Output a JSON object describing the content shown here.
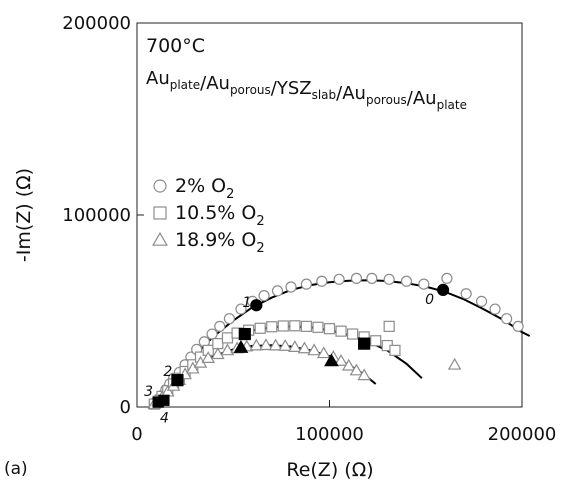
{
  "panel_label": "(a)",
  "chart_data": {
    "type": "scatter",
    "title": "",
    "xlabel": "Re(Z) (Ω)",
    "ylabel": "-Im(Z) (Ω)",
    "xlim": [
      0,
      200000
    ],
    "ylim": [
      0,
      200000
    ],
    "xticks": [
      0,
      100000,
      200000
    ],
    "yticks": [
      0,
      100000,
      200000
    ],
    "tick_labels_x": [
      "0",
      "100000",
      "200000"
    ],
    "tick_labels_y": [
      "0",
      "100000",
      "200000"
    ],
    "grid": false,
    "legend_position": "left",
    "annotations": {
      "temperature": "700°C",
      "cell": [
        {
          "text": "Au",
          "sub": "plate"
        },
        {
          "text": "/Au",
          "sub": "porous"
        },
        {
          "text": "/YSZ",
          "sub": "slab"
        },
        {
          "text": "/Au",
          "sub": "porous"
        },
        {
          "text": "/Au",
          "sub": "plate"
        }
      ]
    },
    "series": [
      {
        "name": "2% O",
        "name_sub": "2",
        "marker": "circle",
        "color": "#8c8c8c",
        "points": [
          [
            9000,
            2000
          ],
          [
            11000,
            4000
          ],
          [
            13000,
            6000
          ],
          [
            15000,
            9000
          ],
          [
            17000,
            12000
          ],
          [
            19000,
            15000
          ],
          [
            22000,
            18000
          ],
          [
            25000,
            22000
          ],
          [
            28000,
            26000
          ],
          [
            31000,
            30000
          ],
          [
            35000,
            34000
          ],
          [
            39000,
            38000
          ],
          [
            43000,
            42000
          ],
          [
            48000,
            46000
          ],
          [
            54000,
            51000
          ],
          [
            60000,
            55000
          ],
          [
            66000,
            58000
          ],
          [
            73000,
            60500
          ],
          [
            80000,
            62500
          ],
          [
            88000,
            64000
          ],
          [
            96000,
            65500
          ],
          [
            105000,
            66500
          ],
          [
            114000,
            67000
          ],
          [
            122000,
            67000
          ],
          [
            131000,
            66500
          ],
          [
            140000,
            65500
          ],
          [
            149000,
            64000
          ],
          [
            161000,
            67000
          ],
          [
            171000,
            59000
          ],
          [
            179000,
            55000
          ],
          [
            186000,
            51000
          ],
          [
            192000,
            46000
          ],
          [
            198000,
            42000
          ]
        ],
        "fit": [
          [
            9000,
            1500
          ],
          [
            15000,
            9500
          ],
          [
            22000,
            18000
          ],
          [
            30000,
            27000
          ],
          [
            40000,
            37000
          ],
          [
            50000,
            45000
          ],
          [
            60000,
            52000
          ],
          [
            70000,
            57000
          ],
          [
            80000,
            61000
          ],
          [
            90000,
            63500
          ],
          [
            100000,
            65000
          ],
          [
            110000,
            65800
          ],
          [
            120000,
            66000
          ],
          [
            130000,
            65600
          ],
          [
            140000,
            64500
          ],
          [
            150000,
            62700
          ],
          [
            160000,
            60000
          ],
          [
            170000,
            56000
          ],
          [
            180000,
            51000
          ],
          [
            190000,
            45500
          ],
          [
            200000,
            39000
          ],
          [
            204000,
            37000
          ]
        ],
        "frequency_markers": [
          {
            "label": "1",
            "point": [
              62000,
              53000
            ]
          },
          {
            "label": "0",
            "point": [
              159000,
              61000
            ]
          }
        ]
      },
      {
        "name": "10.5% O",
        "name_sub": "2",
        "marker": "square",
        "color": "#8c8c8c",
        "points": [
          [
            9000,
            1500
          ],
          [
            11000,
            3000
          ],
          [
            13000,
            5500
          ],
          [
            16000,
            8500
          ],
          [
            19000,
            12000
          ],
          [
            22000,
            15000
          ],
          [
            25000,
            18500
          ],
          [
            29000,
            22000
          ],
          [
            33000,
            26000
          ],
          [
            37000,
            29500
          ],
          [
            42000,
            33000
          ],
          [
            47000,
            36000
          ],
          [
            52000,
            38500
          ],
          [
            58000,
            40000
          ],
          [
            64000,
            41000
          ],
          [
            70000,
            41800
          ],
          [
            76000,
            42200
          ],
          [
            82000,
            42300
          ],
          [
            88000,
            42000
          ],
          [
            94000,
            41500
          ],
          [
            100000,
            40800
          ],
          [
            106000,
            39500
          ],
          [
            112000,
            38000
          ],
          [
            118000,
            36500
          ],
          [
            124000,
            34500
          ],
          [
            130000,
            32000
          ],
          [
            134000,
            29500
          ],
          [
            131000,
            42000
          ]
        ],
        "fit": [
          [
            9000,
            1000
          ],
          [
            15000,
            8000
          ],
          [
            22000,
            15500
          ],
          [
            30000,
            23500
          ],
          [
            40000,
            31500
          ],
          [
            50000,
            37000
          ],
          [
            60000,
            40000
          ],
          [
            70000,
            41500
          ],
          [
            80000,
            42000
          ],
          [
            90000,
            41500
          ],
          [
            100000,
            40000
          ],
          [
            110000,
            37500
          ],
          [
            120000,
            34000
          ],
          [
            130000,
            29500
          ],
          [
            140000,
            22500
          ],
          [
            148000,
            15000
          ]
        ],
        "frequency_markers": [
          {
            "label": "2",
            "point": [
              21000,
              14000
            ]
          },
          {
            "label": "",
            "point": [
              56000,
              38000
            ]
          },
          {
            "label": "",
            "point": [
              118000,
              33000
            ]
          }
        ]
      },
      {
        "name": "18.9% O",
        "name_sub": "2",
        "marker": "triangle",
        "color": "#8c8c8c",
        "points": [
          [
            9000,
            1500
          ],
          [
            11000,
            3000
          ],
          [
            13000,
            5000
          ],
          [
            16000,
            8000
          ],
          [
            19000,
            11000
          ],
          [
            22000,
            14000
          ],
          [
            25000,
            17000
          ],
          [
            29000,
            20000
          ],
          [
            33000,
            23000
          ],
          [
            37000,
            25500
          ],
          [
            42000,
            27500
          ],
          [
            47000,
            29500
          ],
          [
            52000,
            30500
          ],
          [
            57000,
            31500
          ],
          [
            62000,
            32000
          ],
          [
            67000,
            32200
          ],
          [
            72000,
            32000
          ],
          [
            77000,
            31800
          ],
          [
            82000,
            31200
          ],
          [
            87000,
            30500
          ],
          [
            92000,
            29500
          ],
          [
            97000,
            28000
          ],
          [
            102000,
            26000
          ],
          [
            106000,
            24000
          ],
          [
            110000,
            21500
          ],
          [
            114000,
            19000
          ],
          [
            118000,
            16500
          ],
          [
            165000,
            22000
          ]
        ],
        "fit": [
          [
            9000,
            1000
          ],
          [
            15000,
            7500
          ],
          [
            22000,
            14000
          ],
          [
            30000,
            21000
          ],
          [
            40000,
            26500
          ],
          [
            50000,
            30000
          ],
          [
            60000,
            31800
          ],
          [
            70000,
            32200
          ],
          [
            80000,
            31500
          ],
          [
            90000,
            29500
          ],
          [
            100000,
            26500
          ],
          [
            110000,
            22000
          ],
          [
            118000,
            17000
          ],
          [
            124000,
            12000
          ]
        ],
        "frequency_markers": [
          {
            "label": "",
            "point": [
              54000,
              31000
            ]
          },
          {
            "label": "",
            "point": [
              101000,
              24000
            ]
          }
        ]
      }
    ],
    "low_frequency_markers": [
      {
        "label": "3",
        "point": [
          11000,
          2500
        ]
      },
      {
        "label": "4",
        "point": [
          14000,
          3500
        ]
      }
    ]
  }
}
